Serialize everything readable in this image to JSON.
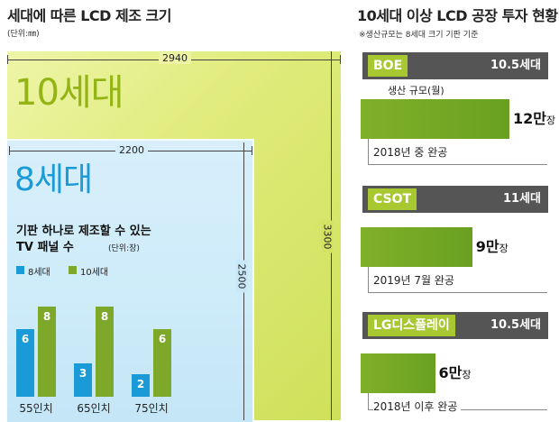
{
  "left_title": "세대에 따른 LCD 제조 크기",
  "left_unit": "(단위:㎜)",
  "gen10": {
    "label": "10세대",
    "width": "2940",
    "height": "3300"
  },
  "gen8": {
    "label": "8세대",
    "width": "2200",
    "height": "2500"
  },
  "colors": {
    "gen8": "#1a9ad6",
    "gen10": "#7ea82a",
    "accent": "#a8c832"
  },
  "chart_data": [
    {
      "type": "bar",
      "title": "기판 하나로 제조할 수 있는 TV 패널 수",
      "unit": "(단위:장)",
      "categories": [
        "55인치",
        "65인치",
        "75인치"
      ],
      "series": [
        {
          "name": "8세대",
          "values": [
            6,
            3,
            2
          ]
        },
        {
          "name": "10세대",
          "values": [
            8,
            8,
            6
          ]
        }
      ],
      "ylim": [
        0,
        8
      ],
      "legend": "top-left"
    },
    {
      "type": "bar",
      "title": "10세대 이상 LCD 공장 투자 현황",
      "subtitle": "※생산규모는 8세대 크기 기판 기준",
      "orientation": "horizontal",
      "measure_label": "생산 규모(월)",
      "unit": "장",
      "categories": [
        "BOE",
        "CSOT",
        "LG디스플레이"
      ],
      "generation": [
        "10.5세대",
        "11세대",
        "10.5세대"
      ],
      "values": [
        12,
        9,
        6
      ],
      "value_labels": [
        "12만",
        "9만",
        "6만"
      ],
      "completion": [
        "2018년 중 완공",
        "2019년 7월 완공",
        "2018년 이후 완공"
      ]
    }
  ]
}
